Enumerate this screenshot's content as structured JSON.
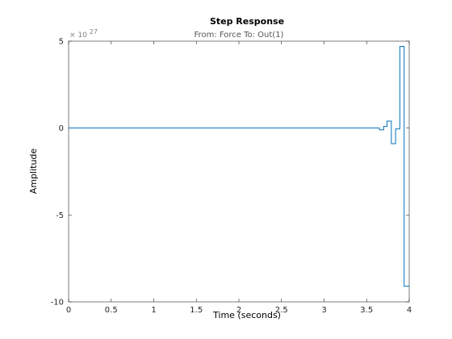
{
  "chart_data": {
    "type": "line",
    "title": "Step Response",
    "subtitle": "From: Force  To: Out(1)",
    "xlabel": "Time (seconds)",
    "ylabel": "Amplitude",
    "y_exponent_base": "× 10",
    "y_exponent_power": "27",
    "xlim": [
      0,
      4
    ],
    "ylim": [
      -10,
      5
    ],
    "xticks": [
      0,
      0.5,
      1,
      1.5,
      2,
      2.5,
      3,
      3.5,
      4
    ],
    "xtick_labels": [
      "0",
      "0.5",
      "1",
      "1.5",
      "2",
      "2.5",
      "3",
      "3.5",
      "4"
    ],
    "yticks": [
      -10,
      -5,
      0,
      5
    ],
    "ytick_labels": [
      "-10",
      "-5",
      "0",
      "5"
    ],
    "grid": false,
    "line_color": "#0072BD",
    "series": [
      {
        "style": "stairs",
        "x": [
          0,
          3.65,
          3.7,
          3.74,
          3.79,
          3.84,
          3.89,
          3.94,
          4.0
        ],
        "y": [
          0,
          -0.1,
          0.1,
          0.4,
          -0.9,
          -0.05,
          4.7,
          -9.1,
          -9.1
        ]
      }
    ]
  }
}
